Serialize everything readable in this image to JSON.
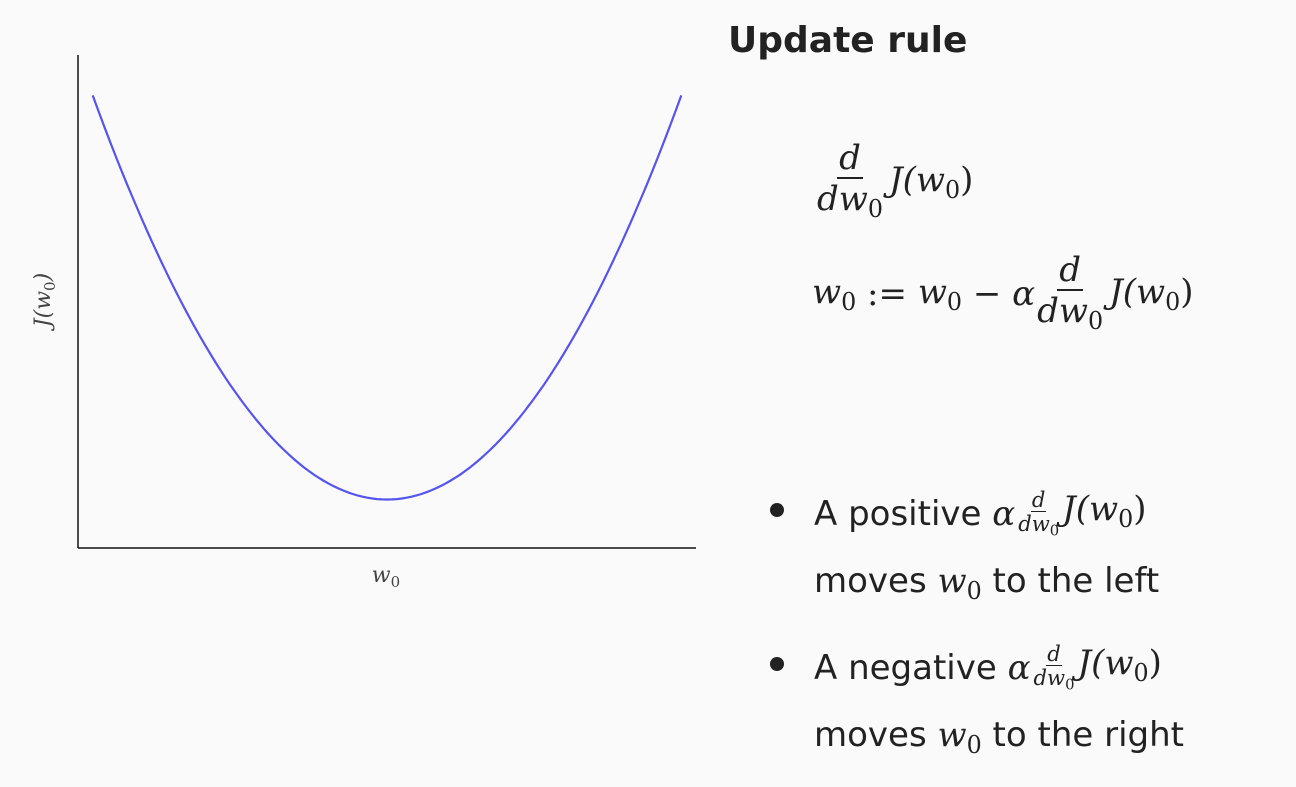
{
  "title": "Update rule",
  "chart_data": {
    "type": "line",
    "xlabel": "w",
    "xlabel_sub": "0",
    "ylabel": "J(w",
    "ylabel_sub": "0",
    "ylabel_close": ")",
    "series": [
      {
        "color": "#5555ee",
        "x": [
          -1,
          -0.8,
          -0.6,
          -0.4,
          -0.2,
          0,
          0.2,
          0.4,
          0.6,
          0.8,
          1
        ],
        "y": [
          1,
          0.64,
          0.36,
          0.16,
          0.04,
          0,
          0.04,
          0.16,
          0.36,
          0.64,
          1
        ]
      }
    ],
    "xlim": [
      -1.05,
      1.05
    ],
    "ylim": [
      -0.12,
      1.1
    ]
  },
  "eq1": {
    "num": "d",
    "den_d": "dw",
    "den_sub": "0",
    "rhs": "J(w",
    "rhs_sub": "0",
    "rhs_close": ")"
  },
  "eq2": {
    "lhs": "w",
    "lhs_sub": "0",
    "assign": " := ",
    "w": "w",
    "w_sub": "0",
    "minus": " − ",
    "alpha": "α",
    "num": "d",
    "den_d": "dw",
    "den_sub": "0",
    "rhs": "J(w",
    "rhs_sub": "0",
    "rhs_close": ")"
  },
  "bullets": [
    {
      "prefix": "A positive ",
      "alpha": "α",
      "num": "d",
      "den_d": "dw",
      "den_sub": "0",
      "J": "J(w",
      "J_sub": "0",
      "J_close": ")",
      "line2_pre": "moves ",
      "w": "w",
      "w_sub": "0",
      "line2_post": " to the left"
    },
    {
      "prefix": "A negative ",
      "alpha": "α",
      "num": "d",
      "den_d": "dw",
      "den_sub": "0",
      "J": "J(w",
      "J_sub": "0",
      "J_close": ")",
      "line2_pre": "moves ",
      "w": "w",
      "w_sub": "0",
      "line2_post": " to the right"
    }
  ]
}
